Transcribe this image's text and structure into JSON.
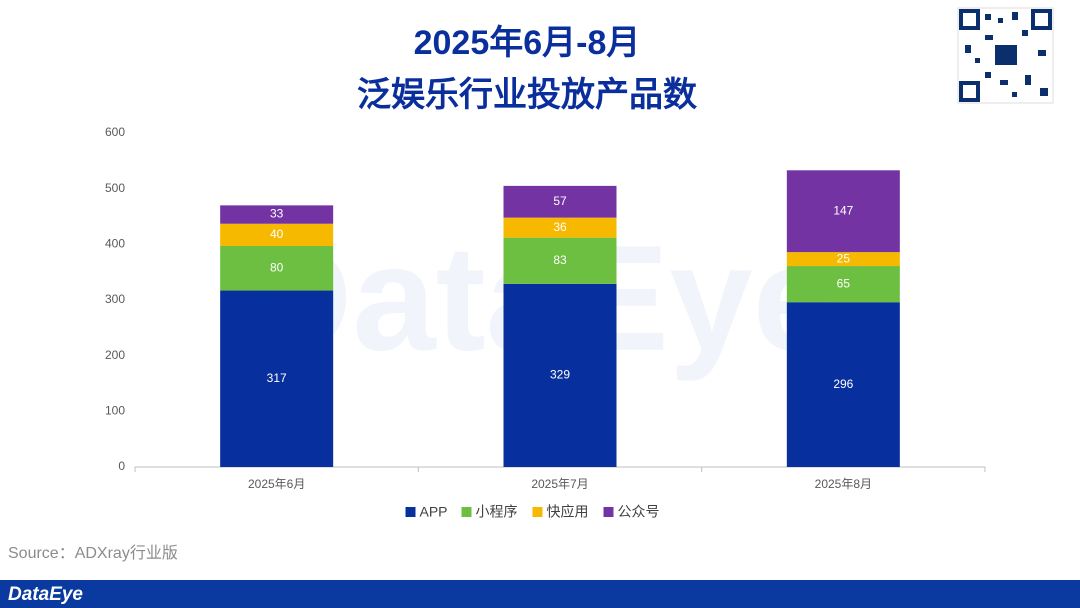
{
  "chart_data": {
    "type": "stacked_bar",
    "title_lines": [
      "2025年6月-8月",
      "泛娱乐行业投放产品数"
    ],
    "categories": [
      "2025年6月",
      "2025年7月",
      "2025年8月"
    ],
    "series": [
      {
        "name": "APP",
        "color": "#07309e",
        "values": [
          317,
          329,
          296
        ]
      },
      {
        "name": "小程序",
        "color": "#6cbf40",
        "values": [
          80,
          83,
          65
        ]
      },
      {
        "name": "快应用",
        "color": "#f6b900",
        "values": [
          40,
          36,
          25
        ]
      },
      {
        "name": "公众号",
        "color": "#7333a3",
        "values": [
          33,
          57,
          147
        ]
      }
    ],
    "ylim": [
      0,
      600
    ],
    "yticks": [
      0,
      100,
      200,
      300,
      400,
      500,
      600
    ],
    "grid": false,
    "legend": "bottom",
    "source": "Source：ADXray行业版",
    "watermark": "DataEye",
    "brand": "DataEye"
  }
}
